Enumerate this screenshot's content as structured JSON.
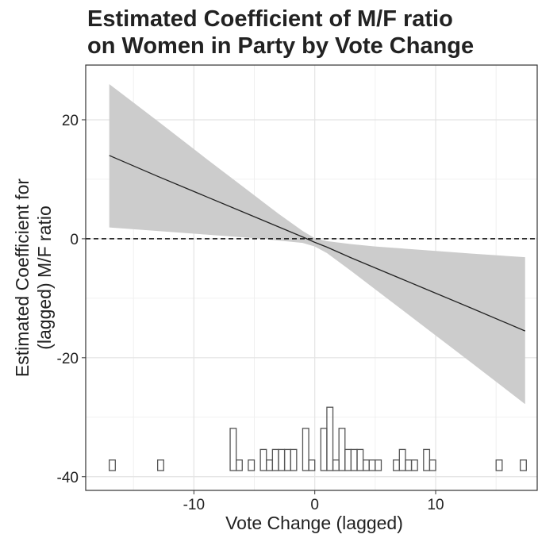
{
  "chart_data": {
    "type": "ribbon-line",
    "title": [
      "Estimated Coefficient of M/F ratio",
      "on Women in Party by Vote Change"
    ],
    "xlabel": "Vote Change (lagged)",
    "ylabel": [
      "Estimated Coefficient for",
      "(lagged) M/F ratio"
    ],
    "x": [
      -17,
      -13,
      -9,
      -5,
      -3,
      -1,
      0,
      1,
      3,
      5,
      9,
      13,
      17.4
    ],
    "fit": [
      14.0,
      10.5,
      7.1,
      3.7,
      2.0,
      0.3,
      -0.6,
      -1.4,
      -3.2,
      -4.9,
      -8.3,
      -11.7,
      -15.5
    ],
    "upper": [
      26.0,
      19.8,
      13.5,
      7.3,
      4.2,
      1.3,
      0.1,
      -0.4,
      -0.9,
      -1.3,
      -1.9,
      -2.5,
      -3.1
    ],
    "lower": [
      1.9,
      1.3,
      0.7,
      0.1,
      -0.3,
      -0.7,
      -1.3,
      -2.4,
      -5.4,
      -8.5,
      -14.7,
      -20.9,
      -27.8
    ],
    "hline": 0,
    "histogram": {
      "bins": [
        -17,
        -16.5,
        -16,
        -15.5,
        -15,
        -14.5,
        -14,
        -13.5,
        -13,
        -12.5,
        -12,
        -11.5,
        -11,
        -10.5,
        -10,
        -9.5,
        -9,
        -8.5,
        -8,
        -7.5,
        -7,
        -6.5,
        -6,
        -5.5,
        -5,
        -4.5,
        -4,
        -3.5,
        -3,
        -2.5,
        -2,
        -1.5,
        -1,
        -0.5,
        0,
        0.5,
        1,
        1.5,
        2,
        2.5,
        3,
        3.5,
        4,
        4.5,
        5,
        5.5,
        6,
        6.5,
        7,
        7.5,
        8,
        8.5,
        9,
        9.5,
        10,
        10.5,
        11,
        11.5,
        12,
        12.5,
        13,
        13.5,
        14,
        14.5,
        15,
        15.5,
        16,
        16.5,
        17,
        17.5
      ],
      "counts": [
        1,
        0,
        0,
        0,
        0,
        0,
        0,
        0,
        1,
        0,
        0,
        0,
        0,
        0,
        0,
        0,
        0,
        0,
        0,
        0,
        4,
        1,
        0,
        1,
        0,
        2,
        1,
        2,
        2,
        2,
        2,
        0,
        4,
        1,
        0,
        4,
        6,
        1,
        4,
        2,
        2,
        2,
        1,
        1,
        1,
        0,
        0,
        1,
        2,
        1,
        1,
        0,
        2,
        1,
        0,
        0,
        0,
        0,
        0,
        0,
        0,
        0,
        0,
        0,
        1,
        0,
        0,
        0,
        1
      ]
    },
    "xlim": [
      -18.95,
      18.4
    ],
    "ylim": [
      -42.3,
      29.2
    ],
    "xticks": [
      -10,
      0,
      10
    ],
    "yticks": [
      -40,
      -20,
      0,
      20
    ],
    "minor_xticks": [
      -15,
      -5,
      5,
      15
    ],
    "minor_yticks": [
      -30,
      -10,
      10
    ],
    "grid": true,
    "color": "#222222",
    "band_color": "#cccccc"
  }
}
